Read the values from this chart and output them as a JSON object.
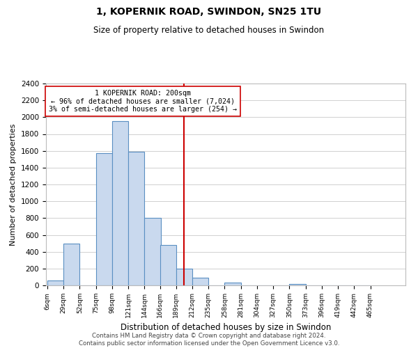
{
  "title": "1, KOPERNIK ROAD, SWINDON, SN25 1TU",
  "subtitle": "Size of property relative to detached houses in Swindon",
  "xlabel": "Distribution of detached houses by size in Swindon",
  "ylabel": "Number of detached properties",
  "bar_left_edges": [
    6,
    29,
    52,
    75,
    98,
    121,
    144,
    166,
    189,
    212,
    235,
    258,
    281,
    304,
    327,
    350,
    373,
    396,
    419,
    442
  ],
  "bar_heights": [
    55,
    500,
    0,
    1575,
    1950,
    1590,
    800,
    480,
    195,
    95,
    0,
    30,
    0,
    0,
    0,
    20,
    0,
    0,
    0,
    0
  ],
  "bin_width": 23,
  "tick_labels": [
    "6sqm",
    "29sqm",
    "52sqm",
    "75sqm",
    "98sqm",
    "121sqm",
    "144sqm",
    "166sqm",
    "189sqm",
    "212sqm",
    "235sqm",
    "258sqm",
    "281sqm",
    "304sqm",
    "327sqm",
    "350sqm",
    "373sqm",
    "396sqm",
    "419sqm",
    "442sqm",
    "465sqm"
  ],
  "bar_color": "#c9d9ee",
  "bar_edge_color": "#5a8fc2",
  "vline_x": 200,
  "vline_color": "#cc0000",
  "annotation_line1": "1 KOPERNIK ROAD: 200sqm",
  "annotation_line2": "← 96% of detached houses are smaller (7,024)",
  "annotation_line3": "3% of semi-detached houses are larger (254) →",
  "ylim": [
    0,
    2400
  ],
  "yticks": [
    0,
    200,
    400,
    600,
    800,
    1000,
    1200,
    1400,
    1600,
    1800,
    2000,
    2200,
    2400
  ],
  "footer_text": "Contains HM Land Registry data © Crown copyright and database right 2024.\nContains public sector information licensed under the Open Government Licence v3.0.",
  "background_color": "#ffffff",
  "grid_color": "#d0d0d0"
}
